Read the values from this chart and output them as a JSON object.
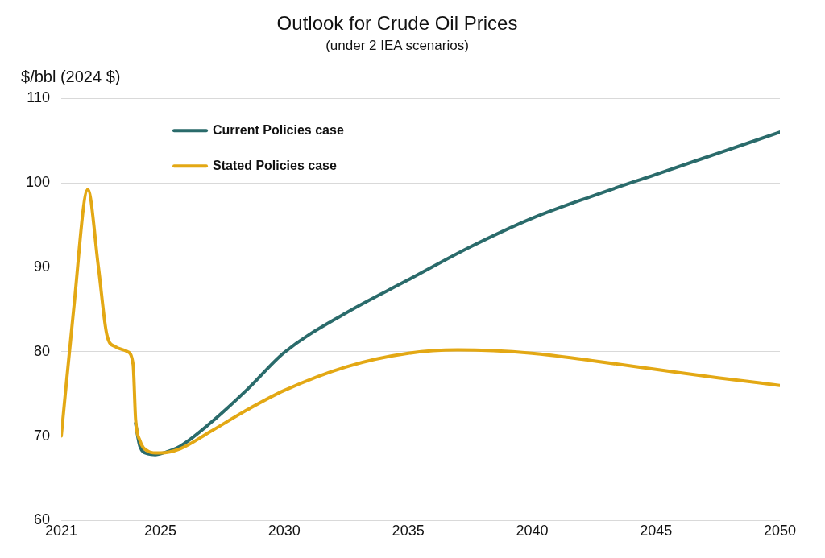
{
  "chart_data": {
    "type": "line",
    "title": "Outlook for Crude Oil Prices",
    "subtitle": "(under 2 IEA scenarios)",
    "ylabel": "$/bbl (2024 $)",
    "xlim": [
      2021,
      2050
    ],
    "xticks": [
      2021,
      2025,
      2030,
      2035,
      2040,
      2045,
      2050
    ],
    "ylim": [
      60,
      110
    ],
    "yticks": [
      60,
      70,
      80,
      90,
      100,
      110
    ],
    "grid": "y",
    "legend": "top left",
    "marker": "none",
    "line_style": "solid",
    "series": [
      {
        "name": "Current Policies case",
        "color": "#2a6b6b",
        "x": [
          2024.0,
          2024.17,
          2024.5,
          2024.8,
          2025,
          2025.8,
          2027,
          2028.5,
          2030,
          2032.5,
          2035,
          2037.5,
          2040,
          2042.5,
          2045,
          2047.5,
          2050
        ],
        "values": [
          71.5,
          68.8,
          67.9,
          67.8,
          67.9,
          68.8,
          71.5,
          75.5,
          79.9,
          84.6,
          88.5,
          92.4,
          95.8,
          98.5,
          101,
          103.5,
          106
        ]
      },
      {
        "name": "Stated Policies case",
        "color": "#e3a814",
        "x": [
          2021,
          2021.5,
          2022.07,
          2022.5,
          2022.84,
          2023.17,
          2023.67,
          2023.9,
          2024.0,
          2024.17,
          2024.5,
          2024.8,
          2025,
          2025.8,
          2027,
          2028.5,
          2030,
          2032.5,
          2035,
          2037,
          2040,
          2042.5,
          2045,
          2047.5,
          2050
        ],
        "values": [
          70,
          85,
          99.2,
          90,
          82,
          80.6,
          80,
          78.5,
          72,
          69.5,
          68.2,
          68,
          68,
          68.5,
          70.5,
          73.1,
          75.4,
          78.2,
          79.8,
          80.2,
          79.8,
          78.9,
          77.9,
          76.9,
          76
        ]
      }
    ]
  }
}
